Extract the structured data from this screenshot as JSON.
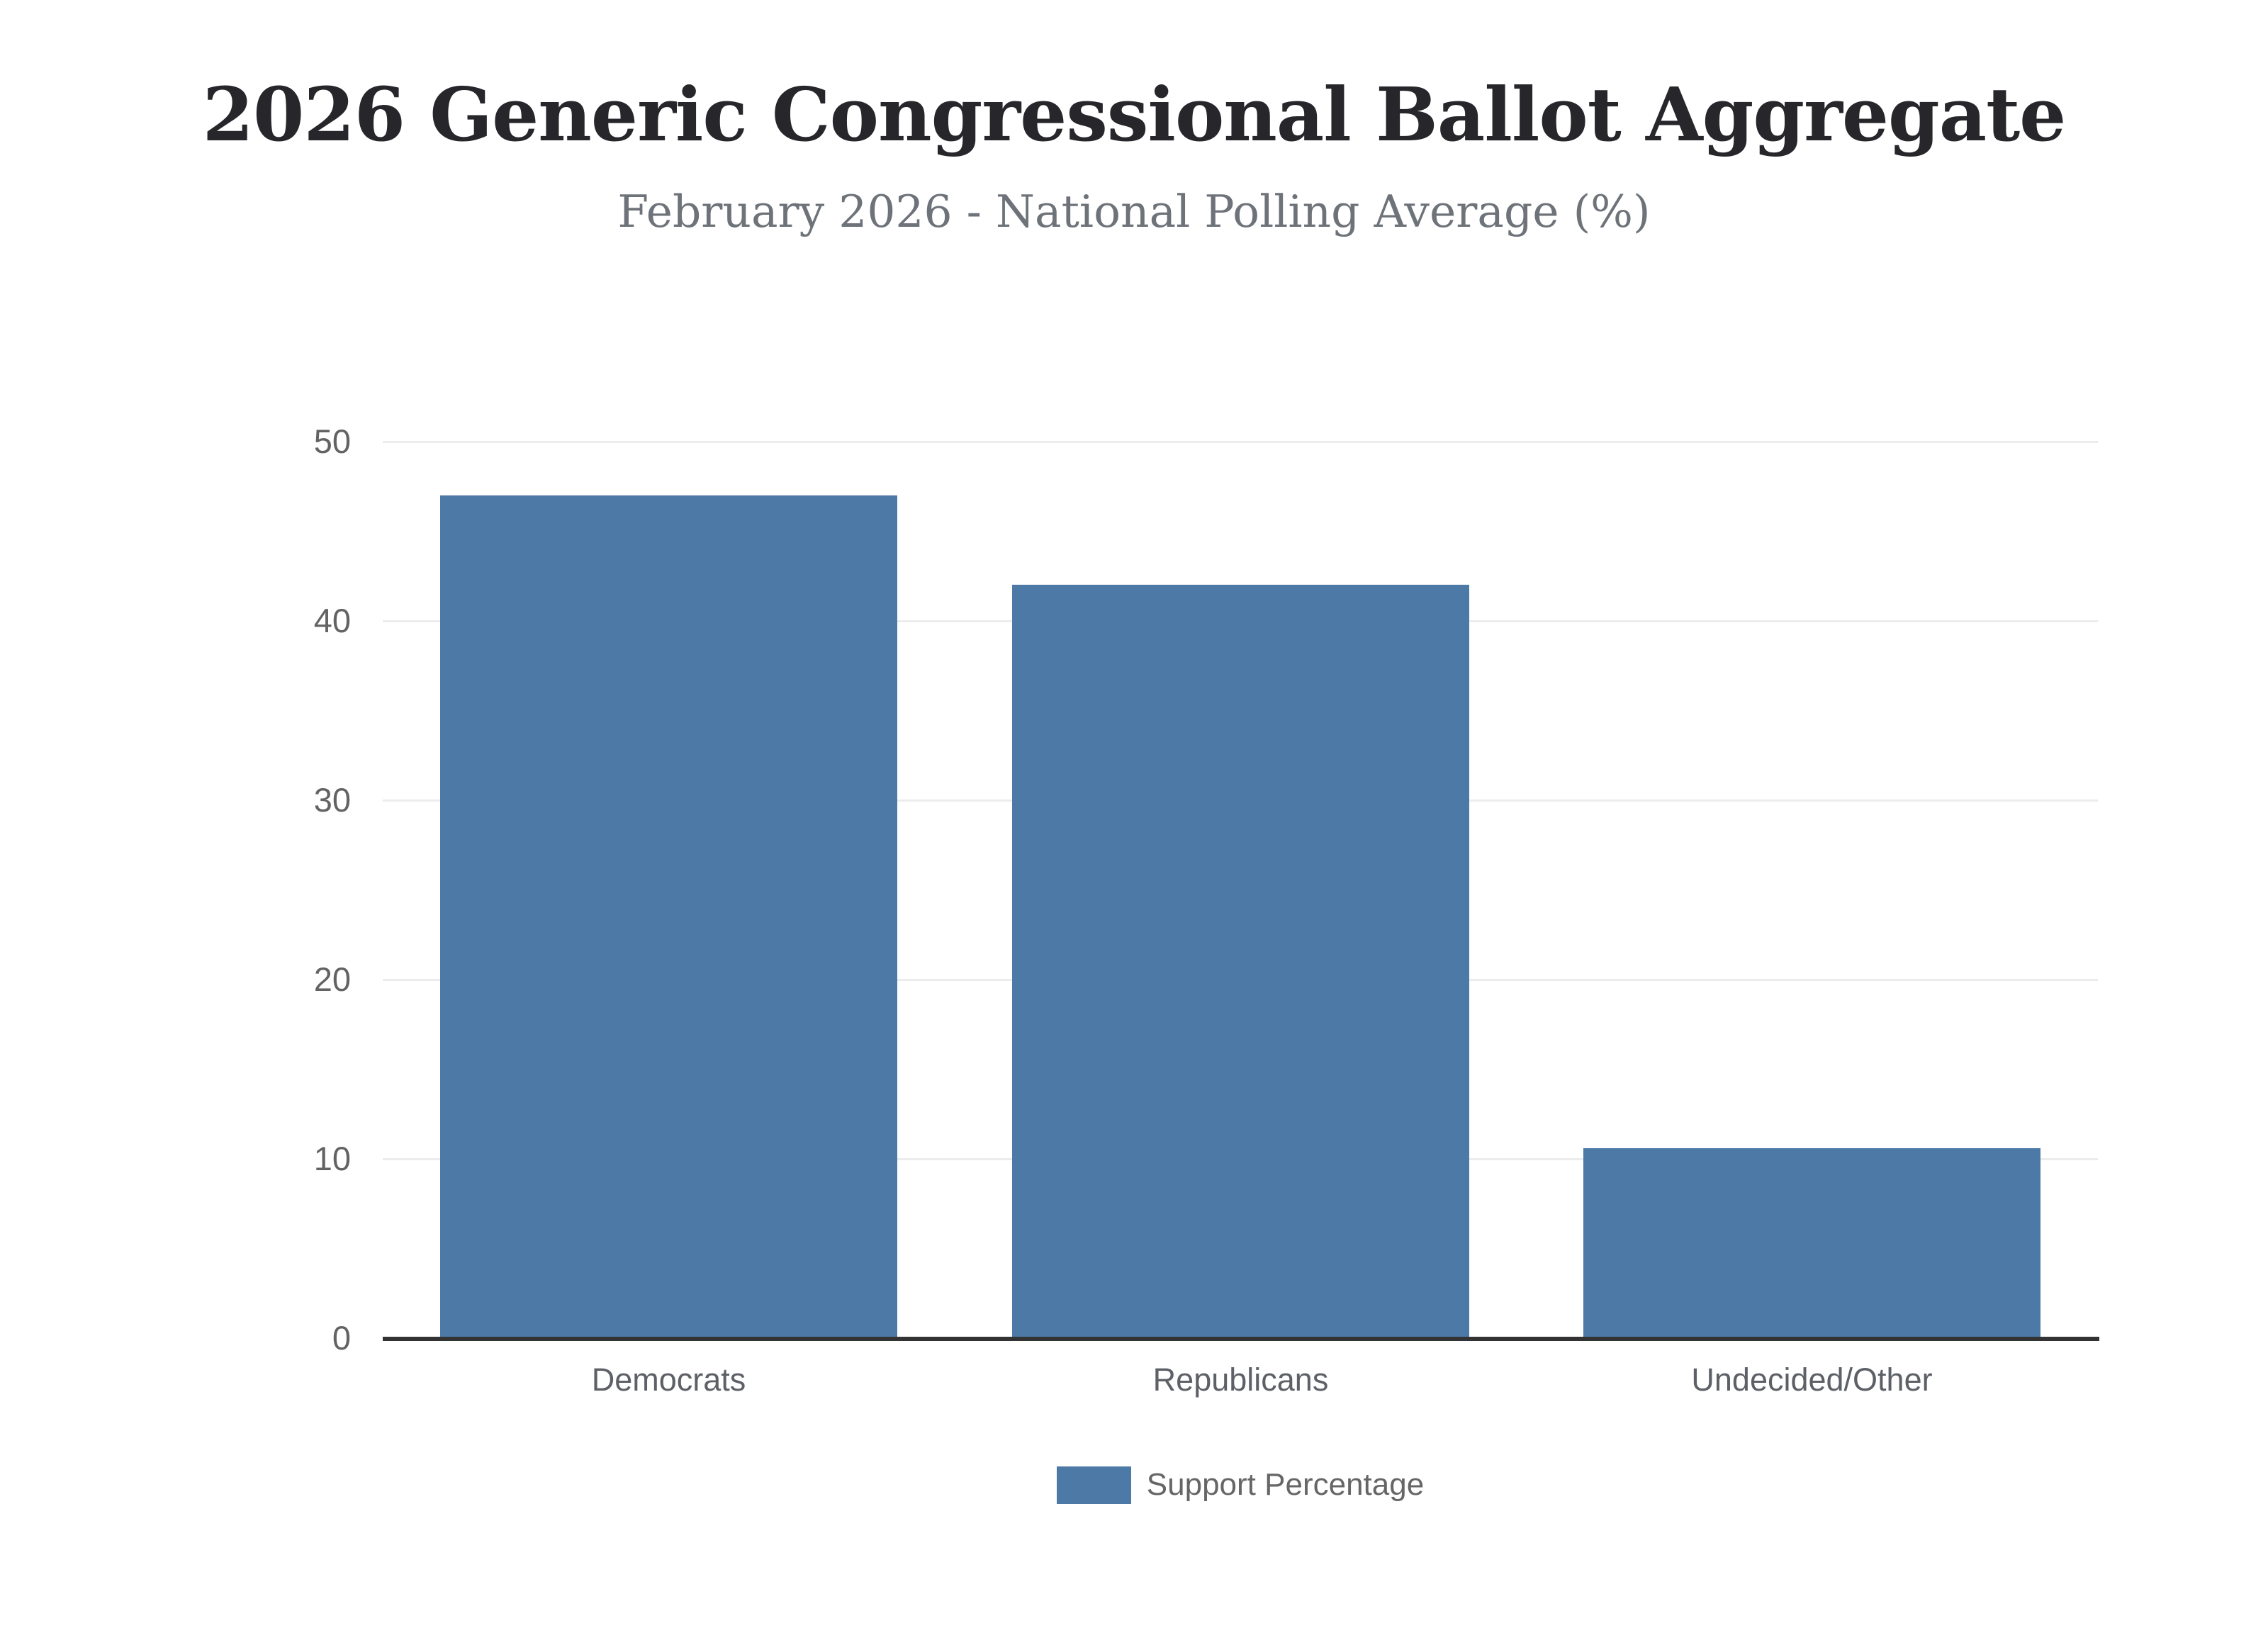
{
  "header": {
    "title": "2026 Generic Congressional Ballot Aggregate",
    "subtitle": "February 2026 - National Polling Average (%)"
  },
  "legend": {
    "label": "Support Percentage"
  },
  "colors": {
    "bar": "#4d79a7",
    "gridline": "#ececec",
    "axis_line": "#333333",
    "y_tick_text": "#636363",
    "x_label_text": "#5d6066",
    "title_text": "#26262b",
    "subtitle_text": "#6e737a",
    "legend_text": "#666666",
    "background": "#ffffff"
  },
  "chart_data": {
    "type": "bar",
    "categories": [
      "Democrats",
      "Republicans",
      "Undecided/Other"
    ],
    "values": [
      47,
      42,
      10.6
    ],
    "series": [
      {
        "name": "Support Percentage",
        "values": [
          47,
          42,
          10.6
        ]
      }
    ],
    "title": "2026 Generic Congressional Ballot Aggregate",
    "subtitle": "February 2026 - National Polling Average (%)",
    "xlabel": "",
    "ylabel": "",
    "ylim": [
      0,
      50
    ],
    "yticks": [
      0,
      10,
      20,
      30,
      40,
      50
    ],
    "grid": true,
    "legend_position": "bottom",
    "legend_entries": [
      "Support Percentage"
    ],
    "bar_color": "#4d79a7"
  }
}
